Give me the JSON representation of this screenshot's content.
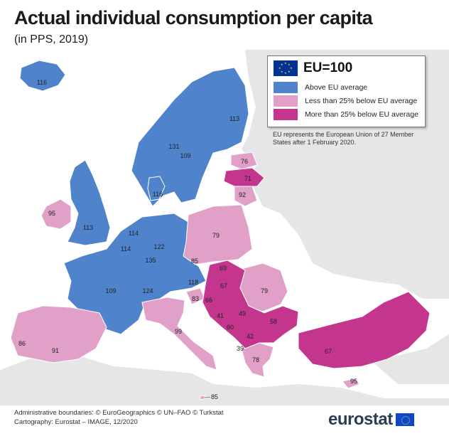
{
  "title": "Actual individual consumption per capita",
  "subtitle": "(in PPS, 2019)",
  "colors": {
    "above": "#4f83cc",
    "less25": "#e1a0c8",
    "more25": "#c4368e",
    "nodata": "#e6e6e6",
    "border": "#ffffff"
  },
  "legend": {
    "title": "EU=100",
    "items": [
      {
        "label": "Above EU average",
        "color": "#4f83cc"
      },
      {
        "label": "Less than 25% below EU average",
        "color": "#e1a0c8"
      },
      {
        "label": "More than 25% below EU average",
        "color": "#c4368e"
      }
    ],
    "note": "EU represents the European Union of 27 Member States after 1 February 2020."
  },
  "countries": [
    {
      "name": "iceland",
      "value": "116"
    },
    {
      "name": "norway",
      "value": "131"
    },
    {
      "name": "sweden",
      "value": "109"
    },
    {
      "name": "finland",
      "value": "113"
    },
    {
      "name": "estonia",
      "value": "76"
    },
    {
      "name": "latvia",
      "value": "71"
    },
    {
      "name": "lithuania",
      "value": "92"
    },
    {
      "name": "denmark",
      "value": "116"
    },
    {
      "name": "ireland",
      "value": "95"
    },
    {
      "name": "united-kingdom",
      "value": "113"
    },
    {
      "name": "netherlands",
      "value": "114"
    },
    {
      "name": "belgium",
      "value": "114"
    },
    {
      "name": "luxembourg",
      "value": "135"
    },
    {
      "name": "germany",
      "value": "122"
    },
    {
      "name": "poland",
      "value": "79"
    },
    {
      "name": "czechia",
      "value": "85"
    },
    {
      "name": "slovakia",
      "value": "69"
    },
    {
      "name": "austria",
      "value": "118"
    },
    {
      "name": "hungary",
      "value": "67"
    },
    {
      "name": "france",
      "value": "109"
    },
    {
      "name": "switzerland",
      "value": "124"
    },
    {
      "name": "slovenia",
      "value": "83"
    },
    {
      "name": "croatia",
      "value": "66"
    },
    {
      "name": "romania",
      "value": "79"
    },
    {
      "name": "bosnia-herzegovina",
      "value": "41"
    },
    {
      "name": "serbia",
      "value": "49"
    },
    {
      "name": "montenegro",
      "value": "60"
    },
    {
      "name": "bulgaria",
      "value": "58"
    },
    {
      "name": "north-macedonia",
      "value": "42"
    },
    {
      "name": "albania",
      "value": "39"
    },
    {
      "name": "greece",
      "value": "78"
    },
    {
      "name": "italy",
      "value": "99"
    },
    {
      "name": "spain",
      "value": "91"
    },
    {
      "name": "portugal",
      "value": "86"
    },
    {
      "name": "turkey",
      "value": "67"
    },
    {
      "name": "cyprus",
      "value": "95"
    },
    {
      "name": "malta",
      "value": "85"
    }
  ],
  "footer": {
    "boundaries": "Administrative boundaries: © EuroGeographics © UN–FAO © Turkstat",
    "cartography": "Cartography: Eurostat – IMAGE, 12/2020"
  },
  "brand": "eurostat"
}
